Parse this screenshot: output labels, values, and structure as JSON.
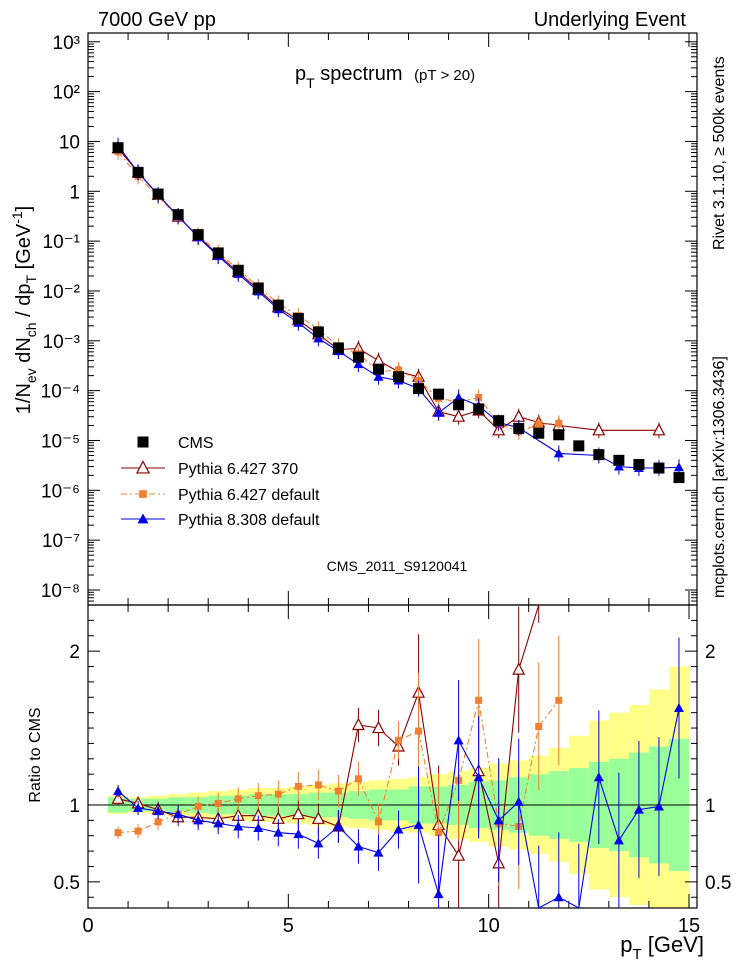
{
  "header": {
    "left": "7000 GeV pp",
    "right": "Underlying Event"
  },
  "side": {
    "rivet": "Rivet 3.1.10, ≥ 500k events",
    "mcplots": "mcplots.cern.ch [arXiv:1306.3436]"
  },
  "plot_title": {
    "main": "p",
    "sub": "T",
    "tail": " spectrum",
    "cut": "(pT > 20)"
  },
  "watermark": "CMS_2011_S9120041",
  "ylabel_main": "1/N_ev dN_ch / dp_T [GeV^-1]",
  "ylabel_ratio": "Ratio to CMS",
  "xlabel": "p_T [GeV]",
  "legend": [
    {
      "name": "CMS",
      "color": "#000000",
      "marker": "square"
    },
    {
      "name": "Pythia 6.427 370",
      "color": "#8b0000",
      "marker": "open-triangle"
    },
    {
      "name": "Pythia 6.427 default",
      "color": "#f08030",
      "marker": "small-square"
    },
    {
      "name": "Pythia 8.308 default",
      "color": "#0000ee",
      "marker": "triangle"
    }
  ],
  "chart_data": {
    "type": "scatter",
    "x": [
      0.75,
      1.25,
      1.75,
      2.25,
      2.75,
      3.25,
      3.75,
      4.25,
      4.75,
      5.25,
      5.75,
      6.25,
      6.75,
      7.25,
      7.75,
      8.25,
      8.75,
      9.25,
      9.75,
      10.25,
      10.75,
      11.25,
      11.75,
      12.25,
      12.75,
      13.25,
      13.75,
      14.25,
      14.75
    ],
    "xlim": [
      0,
      15.2
    ],
    "ylim_main": [
      5e-09,
      1500
    ],
    "log_y_main": true,
    "y_ticks_main": [
      "10^-8",
      "10^-7",
      "10^-6",
      "10^-5",
      "10^-4",
      "10^-3",
      "10^-2",
      "10^-1",
      "1",
      "10",
      "10^2",
      "10^3"
    ],
    "ylim_ratio": [
      0.33,
      2.3
    ],
    "y_ticks_ratio": [
      0.5,
      1,
      2
    ],
    "x_ticks": [
      0,
      5,
      10,
      15
    ],
    "cms": [
      7.5,
      2.4,
      0.88,
      0.34,
      0.135,
      0.058,
      0.026,
      0.0115,
      0.0052,
      0.0028,
      0.0015,
      0.00072,
      0.00047,
      0.00027,
      0.00019,
      0.00011,
      8.5e-05,
      5.2e-05,
      4.3e-05,
      2.5e-05,
      1.75e-05,
      1.4e-05,
      1.3e-05,
      7.8e-06,
      5.2e-06,
      4e-06,
      3.3e-06,
      2.8e-06,
      1.8e-06
    ],
    "series": [
      {
        "name": "Pythia 6.427 370",
        "values": [
          7.3,
          2.4,
          0.85,
          0.31,
          0.125,
          0.053,
          0.024,
          0.0106,
          0.0047,
          0.0026,
          0.00135,
          0.00067,
          0.0007,
          0.0004,
          0.00024,
          0.00019,
          3.8e-05,
          3e-05,
          4e-05,
          1.6e-05,
          3e-05,
          2.3e-05,
          2e-05,
          null,
          1.6e-05,
          null,
          null,
          1.6e-05,
          null
        ]
      },
      {
        "name": "Pythia 6.427 default",
        "values": [
          6.2,
          2.0,
          0.78,
          0.31,
          0.13,
          0.059,
          0.027,
          0.0121,
          0.0056,
          0.0032,
          0.0017,
          0.00078,
          0.00055,
          0.00024,
          0.00026,
          0.00016,
          7e-05,
          6e-05,
          7.3e-05,
          2.2e-05,
          1.5e-05,
          2.1e-05,
          2.2e-05,
          null,
          null,
          null,
          null,
          null,
          null
        ]
      },
      {
        "name": "Pythia 8.308 default",
        "values": [
          8.2,
          2.4,
          0.84,
          0.32,
          0.12,
          0.05,
          0.022,
          0.0098,
          0.0043,
          0.0023,
          0.00112,
          0.00062,
          0.00034,
          0.00019,
          0.00016,
          0.00011,
          3.6e-05,
          7.3e-05,
          5e-05,
          2.3e-05,
          1.8e-05,
          null,
          5.5e-06,
          null,
          5e-06,
          3e-06,
          2.8e-06,
          2.8e-06,
          2.9e-06
        ]
      }
    ],
    "ratio": [
      {
        "name": "Pythia 6.427 370",
        "values": [
          1.04,
          1.01,
          0.97,
          0.92,
          0.92,
          0.91,
          0.93,
          0.93,
          0.91,
          0.94,
          0.91,
          0.86,
          1.52,
          1.5,
          1.38,
          1.73,
          0.87,
          0.67,
          1.22,
          0.62,
          1.88,
          2.6,
          null,
          null,
          null,
          null,
          null,
          null,
          null
        ]
      },
      {
        "name": "Pythia 6.427 default",
        "values": [
          0.82,
          0.83,
          0.89,
          0.94,
          0.99,
          1.01,
          1.04,
          1.06,
          1.07,
          1.12,
          1.13,
          1.09,
          1.17,
          0.89,
          1.42,
          1.48,
          0.82,
          1.16,
          1.68,
          0.88,
          0.86,
          1.51,
          1.68,
          null,
          null,
          null,
          null,
          null,
          null
        ]
      },
      {
        "name": "Pythia 8.308 default",
        "values": [
          1.09,
          0.98,
          0.96,
          0.94,
          0.9,
          0.88,
          0.86,
          0.85,
          0.82,
          0.81,
          0.75,
          0.86,
          0.73,
          0.69,
          0.84,
          0.87,
          0.42,
          1.42,
          1.18,
          0.9,
          1.02,
          0.32,
          0.4,
          0.32,
          1.18,
          0.77,
          0.97,
          0.99,
          1.63
        ]
      }
    ],
    "bands": {
      "inner": [
        0.05,
        0.04,
        0.04,
        0.05,
        0.05,
        0.06,
        0.06,
        0.07,
        0.07,
        0.07,
        0.08,
        0.08,
        0.09,
        0.1,
        0.1,
        0.12,
        0.12,
        0.13,
        0.15,
        0.16,
        0.18,
        0.2,
        0.22,
        0.24,
        0.28,
        0.3,
        0.34,
        0.38,
        0.43
      ],
      "outer": [
        0.06,
        0.05,
        0.06,
        0.07,
        0.08,
        0.09,
        0.1,
        0.11,
        0.11,
        0.12,
        0.13,
        0.14,
        0.15,
        0.16,
        0.17,
        0.18,
        0.2,
        0.22,
        0.24,
        0.27,
        0.29,
        0.32,
        0.37,
        0.45,
        0.55,
        0.6,
        0.65,
        0.75,
        0.9
      ]
    }
  }
}
